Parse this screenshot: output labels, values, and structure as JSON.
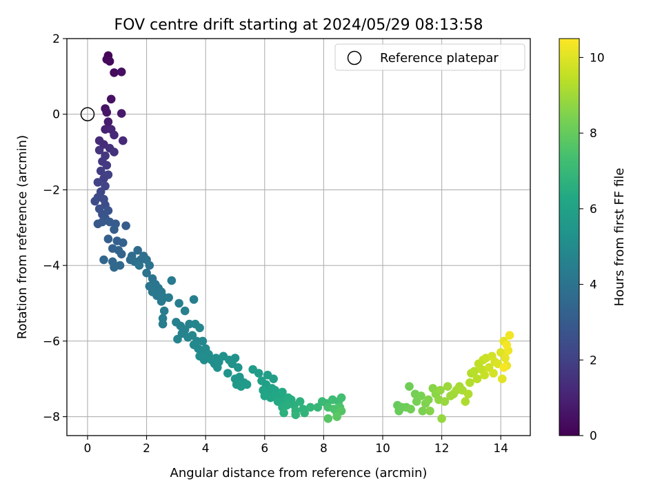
{
  "chart_data": {
    "type": "scatter",
    "title": "FOV centre drift starting at 2024/05/29 08:13:58",
    "xlabel": "Angular distance from reference (arcmin)",
    "ylabel": "Rotation from reference (arcmin)",
    "xlim": [
      -0.7,
      15.0
    ],
    "ylim": [
      -8.5,
      2.0
    ],
    "xticks": [
      0,
      2,
      4,
      6,
      8,
      10,
      12,
      14
    ],
    "yticks": [
      -8,
      -6,
      -4,
      -2,
      0,
      2
    ],
    "x_tick_labels": [
      "0",
      "2",
      "4",
      "6",
      "8",
      "10",
      "12",
      "14"
    ],
    "y_tick_labels": [
      "−8",
      "−6",
      "−4",
      "−2",
      "0",
      "2"
    ],
    "grid": true,
    "legend": {
      "placement": "top-right",
      "entries": [
        "Reference platepar"
      ]
    },
    "reference_point": {
      "x": 0.0,
      "y": 0.0
    },
    "colormap": "viridis",
    "colorbar": {
      "label": "Hours from first FF file",
      "range": [
        0,
        10.5
      ],
      "ticks": [
        0,
        2,
        4,
        6,
        8,
        10
      ],
      "tick_labels": [
        "0",
        "2",
        "4",
        "6",
        "8",
        "10"
      ]
    },
    "segments": [
      {
        "points": [
          [
            0.7,
            1.55
          ],
          [
            0.65,
            1.45
          ],
          [
            0.75,
            1.4
          ],
          [
            0.9,
            1.1
          ],
          [
            1.15,
            1.12
          ],
          [
            0.8,
            0.4
          ],
          [
            0.6,
            0.15
          ],
          [
            0.65,
            0.05
          ],
          [
            1.15,
            0.02
          ],
          [
            0.7,
            -0.2
          ]
        ],
        "t": [
          0.1,
          0.8
        ]
      },
      {
        "points": [
          [
            0.6,
            -0.4
          ],
          [
            0.8,
            -0.4
          ],
          [
            0.9,
            -0.55
          ],
          [
            1.2,
            -0.7
          ],
          [
            0.4,
            -0.7
          ],
          [
            0.55,
            -0.8
          ],
          [
            0.75,
            -0.9
          ],
          [
            0.9,
            -1.0
          ],
          [
            0.4,
            -0.95
          ],
          [
            0.6,
            -1.1
          ],
          [
            0.5,
            -1.25
          ],
          [
            0.65,
            -1.35
          ],
          [
            0.45,
            -1.5
          ],
          [
            0.55,
            -1.7
          ],
          [
            0.7,
            -1.6
          ],
          [
            0.35,
            -1.8
          ],
          [
            0.6,
            -1.9
          ],
          [
            0.45,
            -2.05
          ],
          [
            0.35,
            -2.2
          ],
          [
            0.55,
            -2.25
          ],
          [
            0.25,
            -2.3
          ],
          [
            0.6,
            -2.4
          ],
          [
            0.4,
            -2.5
          ],
          [
            0.5,
            -2.65
          ],
          [
            0.7,
            -2.55
          ],
          [
            0.6,
            -2.75
          ],
          [
            0.35,
            -2.9
          ],
          [
            0.5,
            -2.85
          ],
          [
            0.75,
            -2.85
          ]
        ],
        "t": [
          1.0,
          3.0
        ]
      },
      {
        "points": [
          [
            0.95,
            -2.9
          ],
          [
            1.3,
            -2.95
          ],
          [
            0.9,
            -3.05
          ],
          [
            0.7,
            -3.3
          ],
          [
            1.0,
            -3.35
          ],
          [
            1.2,
            -3.4
          ],
          [
            0.85,
            -3.55
          ],
          [
            1.05,
            -3.6
          ],
          [
            1.15,
            -3.7
          ],
          [
            0.55,
            -3.85
          ],
          [
            0.85,
            -3.9
          ],
          [
            1.1,
            -4.0
          ],
          [
            0.9,
            -4.05
          ],
          [
            1.45,
            -3.85
          ],
          [
            1.7,
            -3.6
          ],
          [
            1.5,
            -3.75
          ],
          [
            1.8,
            -3.85
          ],
          [
            1.6,
            -3.9
          ],
          [
            1.9,
            -3.75
          ],
          [
            2.0,
            -3.85
          ],
          [
            2.1,
            -4.0
          ],
          [
            1.75,
            -4.0
          ]
        ],
        "t": [
          3.0,
          4.0
        ]
      },
      {
        "points": [
          [
            2.0,
            -4.2
          ],
          [
            2.2,
            -4.35
          ],
          [
            2.3,
            -4.5
          ],
          [
            2.1,
            -4.55
          ],
          [
            2.4,
            -4.6
          ],
          [
            2.2,
            -4.7
          ],
          [
            2.5,
            -4.7
          ],
          [
            2.35,
            -4.8
          ],
          [
            2.6,
            -4.85
          ],
          [
            2.5,
            -4.95
          ],
          [
            2.85,
            -4.4
          ],
          [
            2.75,
            -4.85
          ],
          [
            2.6,
            -5.2
          ],
          [
            2.55,
            -5.4
          ],
          [
            2.55,
            -5.55
          ],
          [
            3.1,
            -5.0
          ],
          [
            3.3,
            -5.2
          ],
          [
            3.6,
            -4.9
          ],
          [
            3.0,
            -5.5
          ],
          [
            3.15,
            -5.6
          ],
          [
            3.3,
            -5.7
          ],
          [
            3.45,
            -5.55
          ],
          [
            3.2,
            -5.8
          ],
          [
            3.05,
            -5.95
          ],
          [
            3.4,
            -5.9
          ],
          [
            3.65,
            -5.55
          ],
          [
            3.8,
            -5.65
          ],
          [
            3.55,
            -5.85
          ],
          [
            3.7,
            -6.0
          ],
          [
            3.9,
            -6.0
          ],
          [
            3.6,
            -6.1
          ],
          [
            3.75,
            -6.2
          ],
          [
            3.85,
            -6.3
          ],
          [
            4.0,
            -6.2
          ],
          [
            3.8,
            -6.4
          ],
          [
            3.95,
            -6.5
          ],
          [
            4.1,
            -6.35
          ],
          [
            4.2,
            -6.5
          ],
          [
            4.3,
            -6.6
          ],
          [
            4.35,
            -6.45
          ],
          [
            4.45,
            -6.55
          ]
        ],
        "t": [
          4.0,
          5.2
        ]
      },
      {
        "points": [
          [
            4.4,
            -6.7
          ],
          [
            4.6,
            -6.4
          ],
          [
            4.8,
            -6.5
          ],
          [
            5.0,
            -6.45
          ],
          [
            4.9,
            -6.6
          ],
          [
            5.1,
            -6.7
          ],
          [
            4.75,
            -6.85
          ],
          [
            5.15,
            -6.95
          ],
          [
            5.0,
            -7.0
          ],
          [
            5.3,
            -7.1
          ],
          [
            5.05,
            -7.15
          ],
          [
            5.2,
            -7.2
          ],
          [
            5.4,
            -7.15
          ],
          [
            5.6,
            -6.75
          ],
          [
            5.8,
            -6.85
          ],
          [
            6.1,
            -6.9
          ],
          [
            6.3,
            -7.0
          ],
          [
            5.9,
            -7.05
          ],
          [
            6.05,
            -7.15
          ],
          [
            6.25,
            -7.25
          ],
          [
            5.95,
            -7.3
          ],
          [
            6.15,
            -7.35
          ],
          [
            6.35,
            -7.3
          ],
          [
            6.0,
            -7.45
          ],
          [
            6.2,
            -7.5
          ],
          [
            6.4,
            -7.45
          ],
          [
            6.55,
            -7.45
          ],
          [
            6.6,
            -7.35
          ],
          [
            6.45,
            -7.6
          ],
          [
            6.65,
            -7.6
          ],
          [
            6.8,
            -7.5
          ],
          [
            6.9,
            -7.55
          ],
          [
            6.6,
            -7.75
          ],
          [
            6.75,
            -7.7
          ],
          [
            7.0,
            -7.7
          ],
          [
            7.2,
            -7.6
          ],
          [
            6.65,
            -7.9
          ],
          [
            7.05,
            -7.85
          ],
          [
            7.3,
            -7.8
          ],
          [
            7.05,
            -7.95
          ]
        ],
        "t": [
          5.2,
          6.8
        ]
      },
      {
        "points": [
          [
            7.35,
            -7.9
          ],
          [
            7.55,
            -7.75
          ],
          [
            7.8,
            -7.75
          ],
          [
            7.95,
            -7.6
          ],
          [
            8.1,
            -7.65
          ],
          [
            8.3,
            -7.55
          ],
          [
            8.5,
            -7.6
          ],
          [
            8.6,
            -7.5
          ],
          [
            8.15,
            -7.75
          ],
          [
            8.35,
            -7.8
          ],
          [
            8.55,
            -7.75
          ],
          [
            8.45,
            -7.9
          ],
          [
            8.6,
            -7.85
          ],
          [
            8.15,
            -8.05
          ],
          [
            8.45,
            -8.0
          ]
        ],
        "t": [
          6.8,
          7.8
        ]
      },
      {
        "points": [
          [
            10.5,
            -7.7
          ],
          [
            10.55,
            -7.85
          ],
          [
            10.65,
            -7.75
          ],
          [
            10.8,
            -7.75
          ],
          [
            10.9,
            -7.2
          ],
          [
            10.95,
            -7.8
          ],
          [
            11.1,
            -7.4
          ],
          [
            11.15,
            -7.6
          ],
          [
            11.3,
            -7.45
          ],
          [
            11.35,
            -7.85
          ],
          [
            11.45,
            -7.65
          ],
          [
            11.55,
            -7.55
          ],
          [
            11.6,
            -7.85
          ],
          [
            11.7,
            -7.25
          ],
          [
            11.8,
            -7.4
          ],
          [
            11.9,
            -7.55
          ],
          [
            11.95,
            -7.3
          ],
          [
            12.0,
            -8.05
          ],
          [
            12.1,
            -7.6
          ],
          [
            12.2,
            -7.2
          ],
          [
            12.3,
            -7.45
          ],
          [
            12.4,
            -7.4
          ],
          [
            12.5,
            -7.3
          ],
          [
            12.6,
            -7.2
          ],
          [
            12.7,
            -7.3
          ],
          [
            12.8,
            -7.6
          ],
          [
            12.9,
            -7.4
          ],
          [
            12.95,
            -7.1
          ]
        ],
        "t": [
          8.0,
          9.3
        ]
      },
      {
        "points": [
          [
            13.0,
            -6.85
          ],
          [
            13.1,
            -6.8
          ],
          [
            13.2,
            -7.0
          ],
          [
            13.25,
            -6.6
          ],
          [
            13.35,
            -6.75
          ],
          [
            13.4,
            -6.5
          ],
          [
            13.45,
            -6.9
          ],
          [
            13.5,
            -6.45
          ],
          [
            13.6,
            -6.7
          ],
          [
            13.7,
            -6.4
          ],
          [
            13.75,
            -6.85
          ],
          [
            13.8,
            -6.55
          ],
          [
            13.9,
            -6.6
          ],
          [
            14.0,
            -6.3
          ],
          [
            14.05,
            -7.0
          ],
          [
            14.1,
            -6.0
          ],
          [
            14.15,
            -6.45
          ],
          [
            14.2,
            -6.65
          ],
          [
            14.25,
            -6.25
          ],
          [
            14.3,
            -5.85
          ],
          [
            14.2,
            -6.1
          ],
          [
            14.1,
            -6.7
          ]
        ],
        "t": [
          9.3,
          10.4
        ]
      }
    ]
  }
}
